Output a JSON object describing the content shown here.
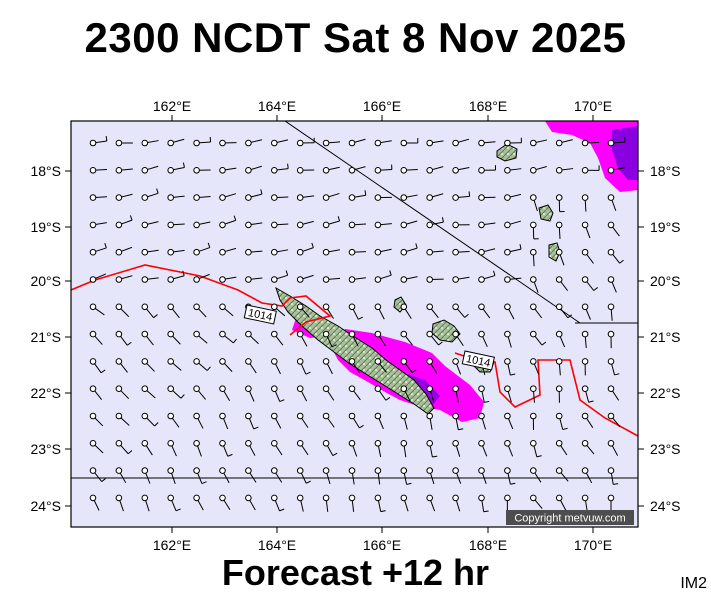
{
  "title": "2300 NCDT Sat 8 Nov 2025",
  "subtitle": "Forecast +12 hr",
  "image_code": "IM2",
  "copyright": "Copyright metvuw.com",
  "isobar_labels": [
    "1014",
    "1014"
  ],
  "lon_labels": [
    "162°E",
    "164°E",
    "166°E",
    "168°E",
    "170°E"
  ],
  "lat_labels": [
    "18°S",
    "19°S",
    "20°S",
    "21°S",
    "22°S",
    "23°S",
    "24°S"
  ],
  "colors": {
    "map_background": "#e6e6fa",
    "isobar": "#ff0000",
    "rain_light": "#ff00ff",
    "rain_heavy": "#8000ff",
    "land": "#9db591"
  }
}
